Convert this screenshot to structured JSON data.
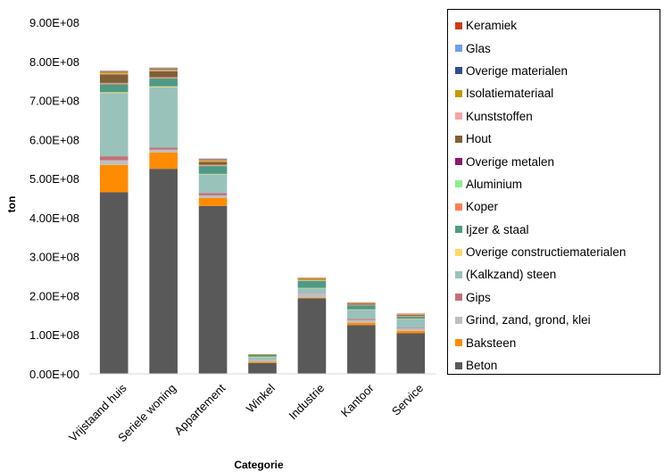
{
  "chart_data": {
    "type": "bar",
    "stacked": true,
    "xlabel": "Categorie",
    "ylabel": "ton",
    "ylim": [
      0,
      900000000
    ],
    "yticks": [
      {
        "value": 0,
        "label": "0.00E+00"
      },
      {
        "value": 100000000,
        "label": "1.00E+08"
      },
      {
        "value": 200000000,
        "label": "2.00E+08"
      },
      {
        "value": 300000000,
        "label": "3.00E+08"
      },
      {
        "value": 400000000,
        "label": "4.00E+08"
      },
      {
        "value": 500000000,
        "label": "5.00E+08"
      },
      {
        "value": 600000000,
        "label": "6.00E+08"
      },
      {
        "value": 700000000,
        "label": "7.00E+08"
      },
      {
        "value": 800000000,
        "label": "8.00E+08"
      },
      {
        "value": 900000000,
        "label": "9.00E+08"
      }
    ],
    "categories": [
      "Vrijstaand huis",
      "Seriele woning",
      "Appartement",
      "Winkel",
      "Industrie",
      "Kantoor",
      "Service"
    ],
    "legend_position": "right",
    "grid": false,
    "series": [
      {
        "name": "Beton",
        "color": "#595959",
        "values": [
          465000000,
          525000000,
          430000000,
          28000000,
          193000000,
          125000000,
          104000000
        ]
      },
      {
        "name": "Baksteen",
        "color": "#ff8c00",
        "values": [
          70000000,
          42000000,
          20000000,
          3000000,
          2000000,
          6000000,
          6000000
        ]
      },
      {
        "name": "Grind, zand, grond, klei",
        "color": "#bfbfbf",
        "values": [
          12000000,
          7000000,
          7000000,
          4000000,
          11000000,
          7000000,
          6000000
        ]
      },
      {
        "name": "Gips",
        "color": "#c0707a",
        "values": [
          10000000,
          5000000,
          6000000,
          1000000,
          1000000,
          3000000,
          2000000
        ]
      },
      {
        "name": "(Kalkzand) steen",
        "color": "#99c2bb",
        "values": [
          162000000,
          155000000,
          48000000,
          7000000,
          12000000,
          23000000,
          22000000
        ]
      },
      {
        "name": "Overige constructiematerialen",
        "color": "#ffd966",
        "values": [
          2000000,
          2000000,
          1000000,
          1000000,
          1000000,
          1000000,
          1000000
        ]
      },
      {
        "name": "Ijzer & staal",
        "color": "#4e9a85",
        "values": [
          20000000,
          20000000,
          20000000,
          4000000,
          18000000,
          10000000,
          5000000
        ]
      },
      {
        "name": "Koper",
        "color": "#ff7f50",
        "values": [
          2000000,
          2000000,
          2000000,
          0,
          1000000,
          1000000,
          1000000
        ]
      },
      {
        "name": "Aluminium",
        "color": "#90ee90",
        "values": [
          1000000,
          1000000,
          1000000,
          0,
          1000000,
          1000000,
          1000000
        ]
      },
      {
        "name": "Overige metalen",
        "color": "#8b1a6b",
        "values": [
          1000000,
          1000000,
          1000000,
          0,
          0,
          1000000,
          1000000
        ]
      },
      {
        "name": "Hout",
        "color": "#7f6035",
        "values": [
          22000000,
          15000000,
          7000000,
          1000000,
          1000000,
          2000000,
          2000000
        ]
      },
      {
        "name": "Kunststoffen",
        "color": "#f4a6a6",
        "values": [
          2000000,
          2000000,
          2000000,
          0,
          1000000,
          1000000,
          1000000
        ]
      },
      {
        "name": "Isolatiemateriaal",
        "color": "#c49a00",
        "values": [
          4000000,
          3000000,
          3000000,
          1000000,
          3000000,
          1000000,
          1000000
        ]
      },
      {
        "name": "Overige materialen",
        "color": "#2f4f8f",
        "values": [
          1000000,
          1000000,
          1000000,
          0,
          0,
          0,
          0
        ]
      },
      {
        "name": "Glas",
        "color": "#6fa0e8",
        "values": [
          1000000,
          2000000,
          1000000,
          0,
          0,
          0,
          0
        ]
      },
      {
        "name": "Keramiek",
        "color": "#d03a1a",
        "values": [
          1000000,
          1000000,
          1000000,
          0,
          1000000,
          1000000,
          1000000
        ]
      }
    ]
  }
}
